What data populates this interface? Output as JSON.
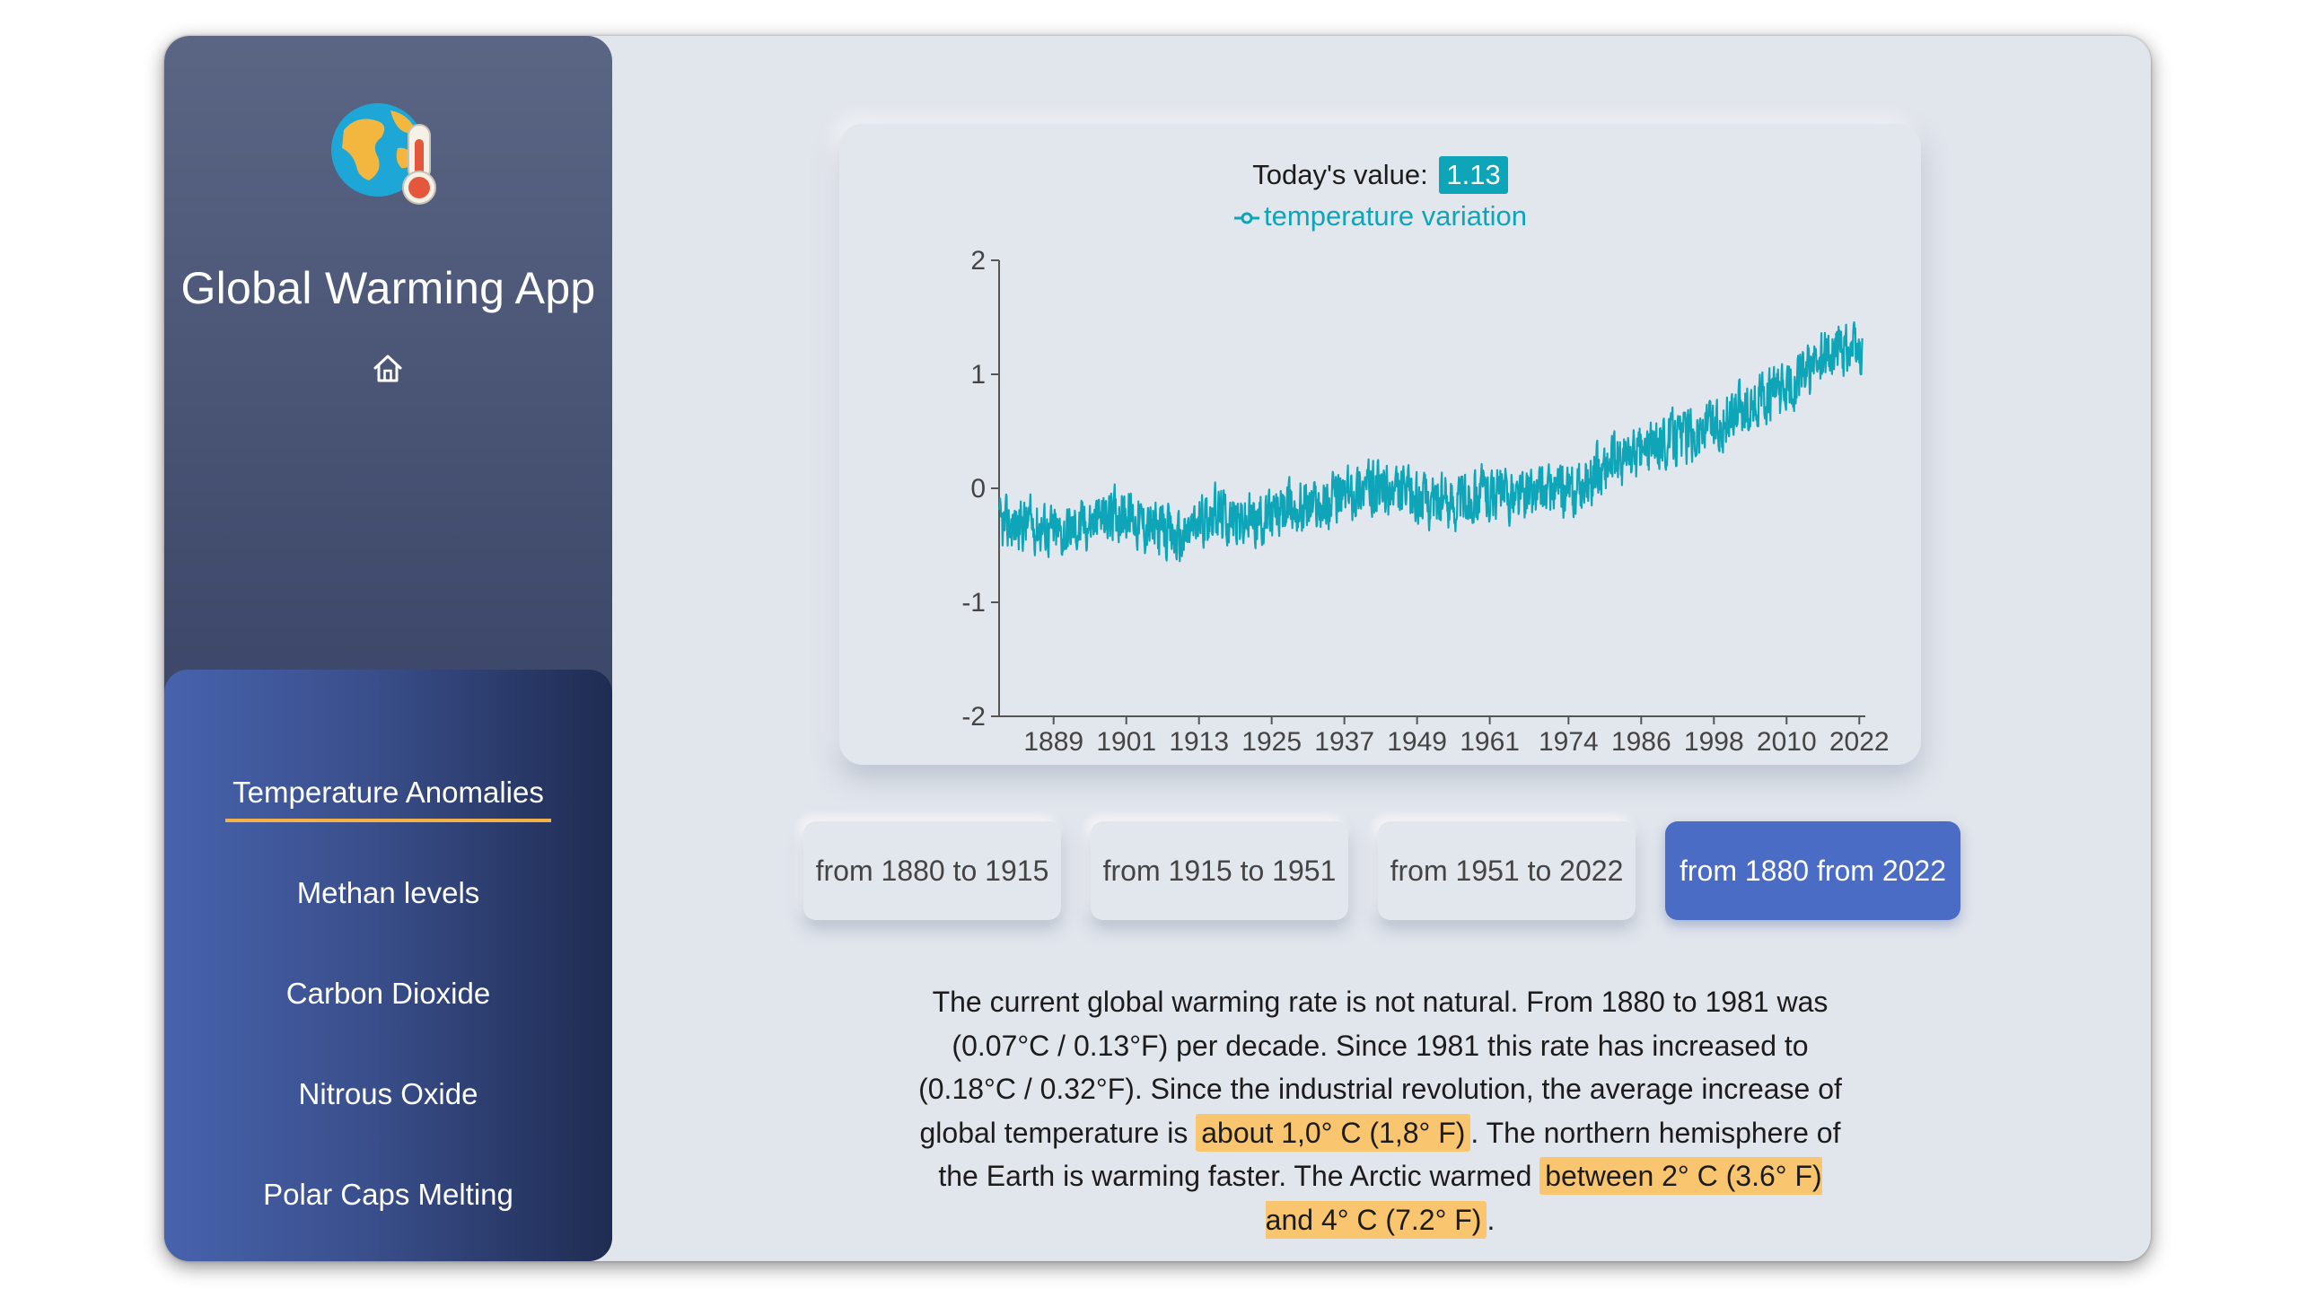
{
  "app": {
    "title": "Global Warming App"
  },
  "sidebar": {
    "nav_items": [
      {
        "label": "Temperature Anomalies",
        "active": true
      },
      {
        "label": "Methan levels",
        "active": false
      },
      {
        "label": "Carbon Dioxide",
        "active": false
      },
      {
        "label": "Nitrous Oxide",
        "active": false
      },
      {
        "label": "Polar Caps Melting",
        "active": false
      }
    ]
  },
  "chart": {
    "today_label": "Today's value:",
    "today_value": "1.13",
    "legend_label": "temperature variation"
  },
  "chart_data": {
    "type": "line",
    "title": "",
    "xlabel": "",
    "ylabel": "",
    "xlim": [
      1880,
      2023
    ],
    "ylim": [
      -2,
      2
    ],
    "y_ticks": [
      "2",
      "1",
      "0",
      "-1",
      "-2"
    ],
    "x_ticks": [
      "1889",
      "1901",
      "1913",
      "1925",
      "1937",
      "1949",
      "1961",
      "1974",
      "1986",
      "1998",
      "2010",
      "2022"
    ],
    "grid": false,
    "color": "#0ea5b8",
    "series": [
      {
        "name": "temperature variation",
        "x": [
          1880,
          1885,
          1890,
          1895,
          1900,
          1905,
          1910,
          1915,
          1920,
          1925,
          1930,
          1935,
          1940,
          1945,
          1950,
          1955,
          1960,
          1965,
          1970,
          1975,
          1980,
          1985,
          1990,
          1995,
          2000,
          2005,
          2010,
          2015,
          2020,
          2023
        ],
        "y": [
          -0.35,
          -0.3,
          -0.4,
          -0.3,
          -0.2,
          -0.35,
          -0.45,
          -0.2,
          -0.3,
          -0.25,
          -0.15,
          -0.12,
          0.02,
          -0.05,
          -0.1,
          -0.12,
          -0.02,
          -0.08,
          -0.02,
          -0.05,
          0.2,
          0.3,
          0.42,
          0.5,
          0.6,
          0.75,
          0.85,
          1.1,
          1.25,
          1.13
        ]
      }
    ]
  },
  "range_buttons": [
    {
      "label": "from 1880 to 1915",
      "active": false
    },
    {
      "label": "from 1915 to 1951",
      "active": false
    },
    {
      "label": "from 1951 to 2022",
      "active": false
    },
    {
      "label": "from 1880 from 2022",
      "active": true
    }
  ],
  "description": {
    "part1": "The current global warming rate is not natural. From 1880 to 1981 was (0.07°C / 0.13°F) per decade. Since 1981 this rate has increased to (0.18°C / 0.32°F). Since the industrial revolution, the average increase of global temperature is ",
    "highlight1": "about 1,0° C (1,8° F)",
    "part2": ". The northern hemisphere of the Earth is warming faster. The Arctic warmed ",
    "highlight2": "between 2° C (3.6° F) and 4° C (7.2° F)",
    "part3": ".",
    "highlight_color": "#f9c56f"
  },
  "colors": {
    "accent": "#0ea5b8",
    "active_button": "#4a6cc4",
    "nav_underline": "#f4b14a"
  }
}
